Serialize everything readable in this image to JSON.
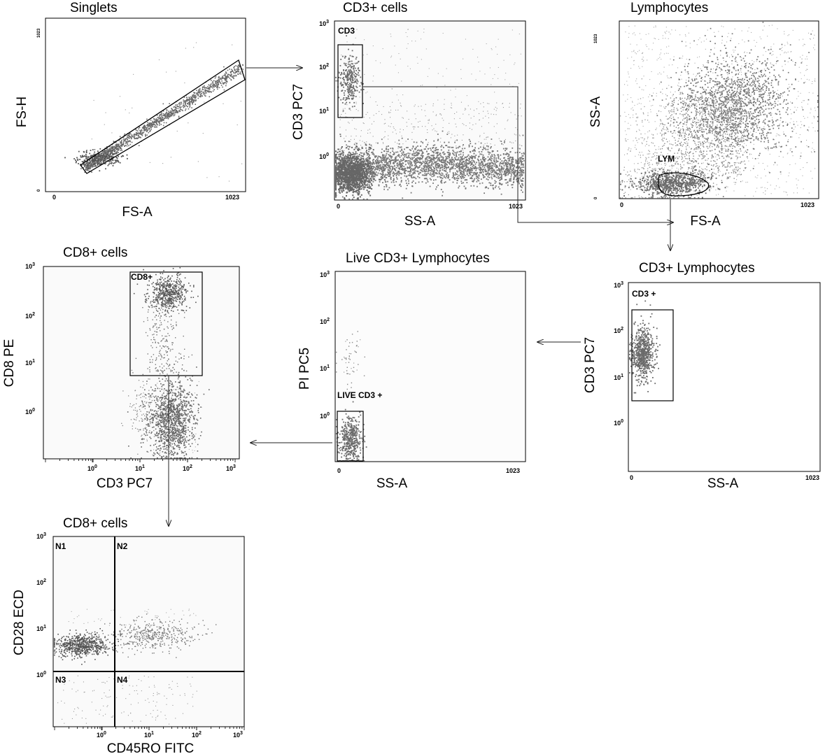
{
  "figure": {
    "panels": [
      {
        "id": "singlets",
        "title": "Singlets",
        "xlabel": "FS-A",
        "ylabel": "FS-H",
        "x_scale": "linear",
        "y_scale": "linear",
        "x_ticks": [
          "0",
          "1023"
        ],
        "y_ticks": [
          "0",
          "1023"
        ],
        "gates": [
          {
            "label": "",
            "shape": "polygon"
          }
        ]
      },
      {
        "id": "cd3",
        "title": "CD3+ cells",
        "xlabel": "SS-A",
        "ylabel": "CD3 PC7",
        "x_scale": "linear",
        "y_scale": "log",
        "x_ticks": [
          "0",
          "1023"
        ],
        "y_ticks": [
          "10^0",
          "10^1",
          "10^2",
          "10^3"
        ],
        "gates": [
          {
            "label": "CD3",
            "shape": "rectangle"
          }
        ]
      },
      {
        "id": "lymphocytes",
        "title": "Lymphocytes",
        "xlabel": "FS-A",
        "ylabel": "SS-A",
        "x_scale": "linear",
        "y_scale": "linear",
        "x_ticks": [
          "0",
          "1023"
        ],
        "y_ticks": [
          "0",
          "1023"
        ],
        "gates": [
          {
            "label": "LYM",
            "shape": "ellipse"
          }
        ]
      },
      {
        "id": "cd3lym",
        "title": "CD3+ Lymphocytes",
        "xlabel": "SS-A",
        "ylabel": "CD3 PC7",
        "x_scale": "linear",
        "y_scale": "log",
        "x_ticks": [
          "0",
          "1023"
        ],
        "y_ticks": [
          "10^0",
          "10^1",
          "10^2",
          "10^3"
        ],
        "gates": [
          {
            "label": "CD3 +",
            "shape": "rectangle"
          }
        ]
      },
      {
        "id": "live",
        "title": "Live CD3+ Lymphocytes",
        "xlabel": "SS-A",
        "ylabel": "PI PC5",
        "x_scale": "linear",
        "y_scale": "log",
        "x_ticks": [
          "0",
          "1023"
        ],
        "y_ticks": [
          "10^0",
          "10^1",
          "10^2",
          "10^3"
        ],
        "gates": [
          {
            "label": "LIVE CD3 +",
            "shape": "rectangle"
          }
        ]
      },
      {
        "id": "cd8",
        "title": "CD8+ cells",
        "xlabel": "CD3 PC7",
        "ylabel": "CD8 PE",
        "x_scale": "log",
        "y_scale": "log",
        "x_ticks": [
          "10^0",
          "10^1",
          "10^2",
          "10^3"
        ],
        "y_ticks": [
          "10^0",
          "10^1",
          "10^2",
          "10^3"
        ],
        "gates": [
          {
            "label": "CD8+",
            "shape": "rectangle"
          }
        ]
      },
      {
        "id": "quad",
        "title": "CD8+ cells",
        "xlabel": "CD45RO FITC",
        "ylabel": "CD28 ECD",
        "x_scale": "log",
        "y_scale": "log",
        "x_ticks": [
          "10^0",
          "10^1",
          "10^2",
          "10^3"
        ],
        "y_ticks": [
          "10^0",
          "10^1",
          "10^2",
          "10^3"
        ],
        "gates": [
          {
            "label": "N1",
            "shape": "quadrant"
          },
          {
            "label": "N2",
            "shape": "quadrant"
          },
          {
            "label": "N3",
            "shape": "quadrant"
          },
          {
            "label": "N4",
            "shape": "quadrant"
          }
        ]
      }
    ],
    "arrows": [
      {
        "from": "singlets",
        "to": "cd3"
      },
      {
        "from": "cd3",
        "to": "cd3lym"
      },
      {
        "from": "lymphocytes",
        "to": "cd3lym"
      },
      {
        "from": "cd3lym",
        "to": "live"
      },
      {
        "from": "live",
        "to": "cd8"
      },
      {
        "from": "cd8",
        "to": "quad"
      }
    ]
  },
  "chart_data": [
    {
      "type": "scatter",
      "title": "Singlets",
      "xlabel": "FS-A",
      "ylabel": "FS-H",
      "xlim": [
        0,
        1023
      ],
      "ylim": [
        0,
        1023
      ],
      "grid": false,
      "populations": [
        {
          "shape": "diagonal-band",
          "x_range": [
            150,
            1023
          ],
          "density": "high"
        }
      ],
      "gates": [
        {
          "label": "",
          "type": "polygon"
        }
      ]
    },
    {
      "type": "scatter",
      "title": "CD3+ cells",
      "xlabel": "SS-A",
      "ylabel": "CD3 PC7",
      "xlim": [
        0,
        1023
      ],
      "ylim": [
        0.1,
        1000
      ],
      "y_scale": "log",
      "grid": false,
      "populations": [
        {
          "x_center": 60,
          "y_center": 40,
          "spread": "tight",
          "density": "high"
        },
        {
          "x_range": [
            0,
            1023
          ],
          "y_center": 0.6,
          "density": "very high"
        }
      ],
      "gates": [
        {
          "label": "CD3",
          "type": "rectangle"
        }
      ]
    },
    {
      "type": "scatter",
      "title": "Lymphocytes",
      "xlabel": "FS-A",
      "ylabel": "SS-A",
      "xlim": [
        0,
        1023
      ],
      "ylim": [
        0,
        1023
      ],
      "grid": false,
      "populations": [
        {
          "x_center": 300,
          "y_center": 80,
          "density": "very high"
        },
        {
          "x_center": 600,
          "y_center": 500,
          "density": "high"
        }
      ],
      "gates": [
        {
          "label": "LYM",
          "type": "ellipse"
        }
      ]
    },
    {
      "type": "scatter",
      "title": "CD3+ Lymphocytes",
      "xlabel": "SS-A",
      "ylabel": "CD3 PC7",
      "xlim": [
        0,
        1023
      ],
      "ylim": [
        0.1,
        1000
      ],
      "y_scale": "log",
      "grid": false,
      "populations": [
        {
          "x_center": 60,
          "y_center": 35,
          "density": "high"
        }
      ],
      "gates": [
        {
          "label": "CD3 +",
          "type": "rectangle"
        }
      ]
    },
    {
      "type": "scatter",
      "title": "Live CD3+ Lymphocytes",
      "xlabel": "SS-A",
      "ylabel": "PI PC5",
      "xlim": [
        0,
        1023
      ],
      "ylim": [
        0.1,
        1000
      ],
      "y_scale": "log",
      "grid": false,
      "populations": [
        {
          "x_center": 60,
          "y_center": 0.3,
          "density": "high"
        },
        {
          "x_center": 90,
          "y_center": 15,
          "density": "sparse"
        }
      ],
      "gates": [
        {
          "label": "LIVE CD3 +",
          "type": "rectangle"
        }
      ]
    },
    {
      "type": "scatter",
      "title": "CD8+ cells",
      "xlabel": "CD3 PC7",
      "ylabel": "CD8 PE",
      "xlim": [
        0.1,
        1000
      ],
      "ylim": [
        0.1,
        1000
      ],
      "x_scale": "log",
      "y_scale": "log",
      "grid": false,
      "populations": [
        {
          "x_center": 40,
          "y_center": 500,
          "density": "high"
        },
        {
          "x_center": 40,
          "y_center": 0.6,
          "density": "high"
        }
      ],
      "gates": [
        {
          "label": "CD8+",
          "type": "rectangle"
        }
      ]
    },
    {
      "type": "scatter",
      "title": "CD8+ cells",
      "xlabel": "CD45RO FITC",
      "ylabel": "CD28 ECD",
      "xlim": [
        0.1,
        1000
      ],
      "ylim": [
        0.1,
        1000
      ],
      "x_scale": "log",
      "y_scale": "log",
      "grid": false,
      "quadrant_split": {
        "x": 2,
        "y": 1.2
      },
      "populations": [
        {
          "x_center": 0.4,
          "y_center": 4,
          "density": "high"
        },
        {
          "x_center": 15,
          "y_center": 6,
          "density": "medium"
        }
      ],
      "gates": [
        {
          "label": "N1",
          "type": "quadrant"
        },
        {
          "label": "N2",
          "type": "quadrant"
        },
        {
          "label": "N3",
          "type": "quadrant"
        },
        {
          "label": "N4",
          "type": "quadrant"
        }
      ]
    }
  ]
}
